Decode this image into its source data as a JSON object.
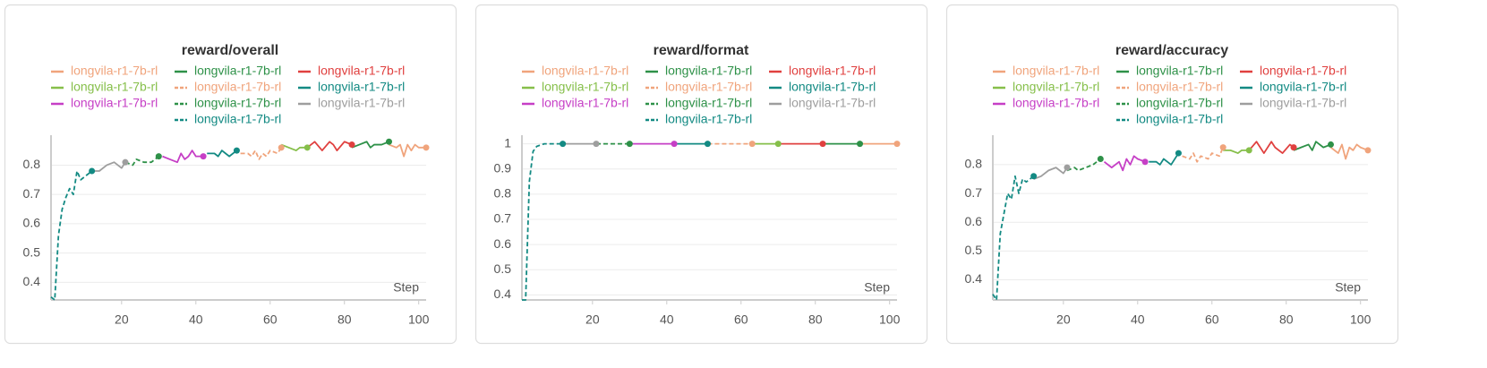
{
  "chart_data": [
    {
      "type": "line",
      "title": "reward/overall",
      "x_label": "Step",
      "xlim": [
        1,
        102
      ],
      "xticks": [
        20,
        40,
        60,
        80,
        100
      ],
      "ylim": [
        0.34,
        0.89
      ],
      "yticks": [
        0.4,
        0.5,
        0.6,
        0.7,
        0.8
      ],
      "grid": true,
      "series": [
        {
          "name": "longvila-r1-7b-rl",
          "color": "#f0a47c",
          "dashed": false,
          "x": [
            92,
            94,
            95,
            96,
            97,
            98,
            99,
            100,
            102
          ],
          "values": [
            0.87,
            0.86,
            0.87,
            0.83,
            0.87,
            0.85,
            0.87,
            0.86,
            0.86
          ]
        },
        {
          "name": "longvila-r1-7b-rl",
          "color": "#2e9148",
          "dashed": false,
          "x": [
            82,
            84,
            86,
            87,
            88,
            90,
            92
          ],
          "values": [
            0.86,
            0.87,
            0.88,
            0.86,
            0.87,
            0.87,
            0.88
          ]
        },
        {
          "name": "longvila-r1-7b-rl",
          "color": "#e0403f",
          "dashed": false,
          "x": [
            70,
            72,
            74,
            76,
            77,
            78,
            80,
            82
          ],
          "values": [
            0.86,
            0.88,
            0.85,
            0.88,
            0.87,
            0.85,
            0.88,
            0.87
          ]
        },
        {
          "name": "longvila-r1-7b-rl",
          "color": "#86bf4a",
          "dashed": false,
          "x": [
            63,
            65,
            67,
            68,
            70
          ],
          "values": [
            0.87,
            0.86,
            0.85,
            0.86,
            0.86
          ]
        },
        {
          "name": "longvila-r1-7b-rl",
          "color": "#f0a47c",
          "dashed": true,
          "x": [
            52,
            54,
            55,
            56,
            57,
            58,
            59,
            60,
            62,
            63
          ],
          "values": [
            0.84,
            0.84,
            0.83,
            0.85,
            0.82,
            0.84,
            0.83,
            0.85,
            0.84,
            0.86
          ]
        },
        {
          "name": "longvila-r1-7b-rl",
          "color": "#138a83",
          "dashed": false,
          "x": [
            43,
            45,
            46,
            47,
            48,
            49,
            51
          ],
          "values": [
            0.84,
            0.84,
            0.83,
            0.85,
            0.84,
            0.83,
            0.85
          ]
        },
        {
          "name": "longvila-r1-7b-rl",
          "color": "#c63fc6",
          "dashed": false,
          "x": [
            31,
            33,
            35,
            36,
            37,
            38,
            39,
            40,
            42
          ],
          "values": [
            0.83,
            0.82,
            0.81,
            0.84,
            0.82,
            0.83,
            0.85,
            0.83,
            0.83
          ]
        },
        {
          "name": "longvila-r1-7b-rl",
          "color": "#2e9148",
          "dashed": true,
          "x": [
            21,
            23,
            24,
            26,
            28,
            30
          ],
          "values": [
            0.81,
            0.8,
            0.82,
            0.81,
            0.81,
            0.83
          ]
        },
        {
          "name": "longvila-r1-7b-rl",
          "color": "#9e9e9e",
          "dashed": false,
          "x": [
            12,
            14,
            16,
            18,
            20,
            21
          ],
          "values": [
            0.78,
            0.78,
            0.8,
            0.81,
            0.79,
            0.81
          ]
        },
        {
          "name": "longvila-r1-7b-rl",
          "color": "#138a83",
          "dashed": true,
          "x": [
            1,
            2,
            3,
            4,
            5,
            6,
            7,
            8,
            9,
            10,
            12
          ],
          "values": [
            0.35,
            0.34,
            0.56,
            0.65,
            0.69,
            0.72,
            0.7,
            0.78,
            0.75,
            0.76,
            0.78
          ]
        }
      ]
    },
    {
      "type": "line",
      "title": "reward/format",
      "x_label": "Step",
      "xlim": [
        1,
        102
      ],
      "xticks": [
        20,
        40,
        60,
        80,
        100
      ],
      "ylim": [
        0.38,
        1.02
      ],
      "yticks": [
        0.4,
        0.5,
        0.6,
        0.7,
        0.8,
        0.9,
        1
      ],
      "grid": true,
      "series": [
        {
          "name": "longvila-r1-7b-rl",
          "color": "#f0a47c",
          "dashed": false,
          "x": [
            92,
            97,
            102
          ],
          "values": [
            1,
            1,
            1
          ]
        },
        {
          "name": "longvila-r1-7b-rl",
          "color": "#2e9148",
          "dashed": false,
          "x": [
            82,
            87,
            92
          ],
          "values": [
            1,
            1,
            1
          ]
        },
        {
          "name": "longvila-r1-7b-rl",
          "color": "#e0403f",
          "dashed": false,
          "x": [
            70,
            76,
            82
          ],
          "values": [
            1,
            1,
            1
          ]
        },
        {
          "name": "longvila-r1-7b-rl",
          "color": "#86bf4a",
          "dashed": false,
          "x": [
            63,
            66,
            70
          ],
          "values": [
            1,
            1,
            1
          ]
        },
        {
          "name": "longvila-r1-7b-rl",
          "color": "#f0a47c",
          "dashed": true,
          "x": [
            51,
            57,
            63
          ],
          "values": [
            1,
            1,
            1
          ]
        },
        {
          "name": "longvila-r1-7b-rl",
          "color": "#138a83",
          "dashed": false,
          "x": [
            42,
            46,
            51
          ],
          "values": [
            1,
            1,
            1
          ]
        },
        {
          "name": "longvila-r1-7b-rl",
          "color": "#c63fc6",
          "dashed": false,
          "x": [
            30,
            36,
            42
          ],
          "values": [
            1,
            1,
            1
          ]
        },
        {
          "name": "longvila-r1-7b-rl",
          "color": "#2e9148",
          "dashed": true,
          "x": [
            21,
            25,
            30
          ],
          "values": [
            1,
            1,
            1
          ]
        },
        {
          "name": "longvila-r1-7b-rl",
          "color": "#9e9e9e",
          "dashed": false,
          "x": [
            12,
            16,
            21
          ],
          "values": [
            1,
            1,
            1
          ]
        },
        {
          "name": "longvila-r1-7b-rl",
          "color": "#138a83",
          "dashed": true,
          "x": [
            1,
            2,
            3,
            4,
            5,
            7,
            12
          ],
          "values": [
            0.38,
            0.38,
            0.85,
            0.97,
            0.99,
            1,
            1
          ]
        }
      ]
    },
    {
      "type": "line",
      "title": "reward/accuracy",
      "x_label": "Step",
      "xlim": [
        1,
        102
      ],
      "xticks": [
        20,
        40,
        60,
        80,
        100
      ],
      "ylim": [
        0.33,
        0.89
      ],
      "yticks": [
        0.4,
        0.5,
        0.6,
        0.7,
        0.8
      ],
      "grid": true,
      "series": [
        {
          "name": "longvila-r1-7b-rl",
          "color": "#f0a47c",
          "dashed": false,
          "x": [
            92,
            94,
            95,
            96,
            97,
            98,
            99,
            100,
            102
          ],
          "values": [
            0.86,
            0.84,
            0.87,
            0.82,
            0.86,
            0.85,
            0.87,
            0.86,
            0.85
          ]
        },
        {
          "name": "longvila-r1-7b-rl",
          "color": "#2e9148",
          "dashed": false,
          "x": [
            82,
            84,
            86,
            87,
            88,
            90,
            92
          ],
          "values": [
            0.85,
            0.86,
            0.87,
            0.85,
            0.88,
            0.86,
            0.87
          ]
        },
        {
          "name": "longvila-r1-7b-rl",
          "color": "#e0403f",
          "dashed": false,
          "x": [
            70,
            72,
            74,
            76,
            77,
            79,
            81,
            82
          ],
          "values": [
            0.85,
            0.88,
            0.84,
            0.88,
            0.86,
            0.84,
            0.87,
            0.86
          ]
        },
        {
          "name": "longvila-r1-7b-rl",
          "color": "#86bf4a",
          "dashed": false,
          "x": [
            63,
            65,
            67,
            68,
            70
          ],
          "values": [
            0.85,
            0.85,
            0.84,
            0.85,
            0.85
          ]
        },
        {
          "name": "longvila-r1-7b-rl",
          "color": "#f0a47c",
          "dashed": true,
          "x": [
            52,
            54,
            55,
            56,
            57,
            59,
            60,
            62,
            63
          ],
          "values": [
            0.83,
            0.82,
            0.84,
            0.81,
            0.83,
            0.82,
            0.84,
            0.83,
            0.86
          ]
        },
        {
          "name": "longvila-r1-7b-rl",
          "color": "#138a83",
          "dashed": false,
          "x": [
            43,
            45,
            46,
            47,
            48,
            49,
            51
          ],
          "values": [
            0.81,
            0.81,
            0.8,
            0.82,
            0.81,
            0.8,
            0.84
          ]
        },
        {
          "name": "longvila-r1-7b-rl",
          "color": "#c63fc6",
          "dashed": false,
          "x": [
            31,
            33,
            35,
            36,
            37,
            38,
            39,
            40,
            42
          ],
          "values": [
            0.81,
            0.79,
            0.81,
            0.78,
            0.82,
            0.8,
            0.83,
            0.82,
            0.81
          ]
        },
        {
          "name": "longvila-r1-7b-rl",
          "color": "#2e9148",
          "dashed": true,
          "x": [
            21,
            23,
            24,
            26,
            28,
            30
          ],
          "values": [
            0.78,
            0.79,
            0.78,
            0.79,
            0.8,
            0.82
          ]
        },
        {
          "name": "longvila-r1-7b-rl",
          "color": "#9e9e9e",
          "dashed": false,
          "x": [
            12,
            14,
            16,
            18,
            20,
            21
          ],
          "values": [
            0.75,
            0.76,
            0.78,
            0.79,
            0.77,
            0.79
          ]
        },
        {
          "name": "longvila-r1-7b-rl",
          "color": "#138a83",
          "dashed": true,
          "x": [
            1,
            2,
            3,
            4,
            5,
            6,
            7,
            8,
            9,
            10,
            12
          ],
          "values": [
            0.35,
            0.33,
            0.56,
            0.63,
            0.7,
            0.68,
            0.76,
            0.7,
            0.75,
            0.74,
            0.76
          ]
        }
      ]
    }
  ]
}
